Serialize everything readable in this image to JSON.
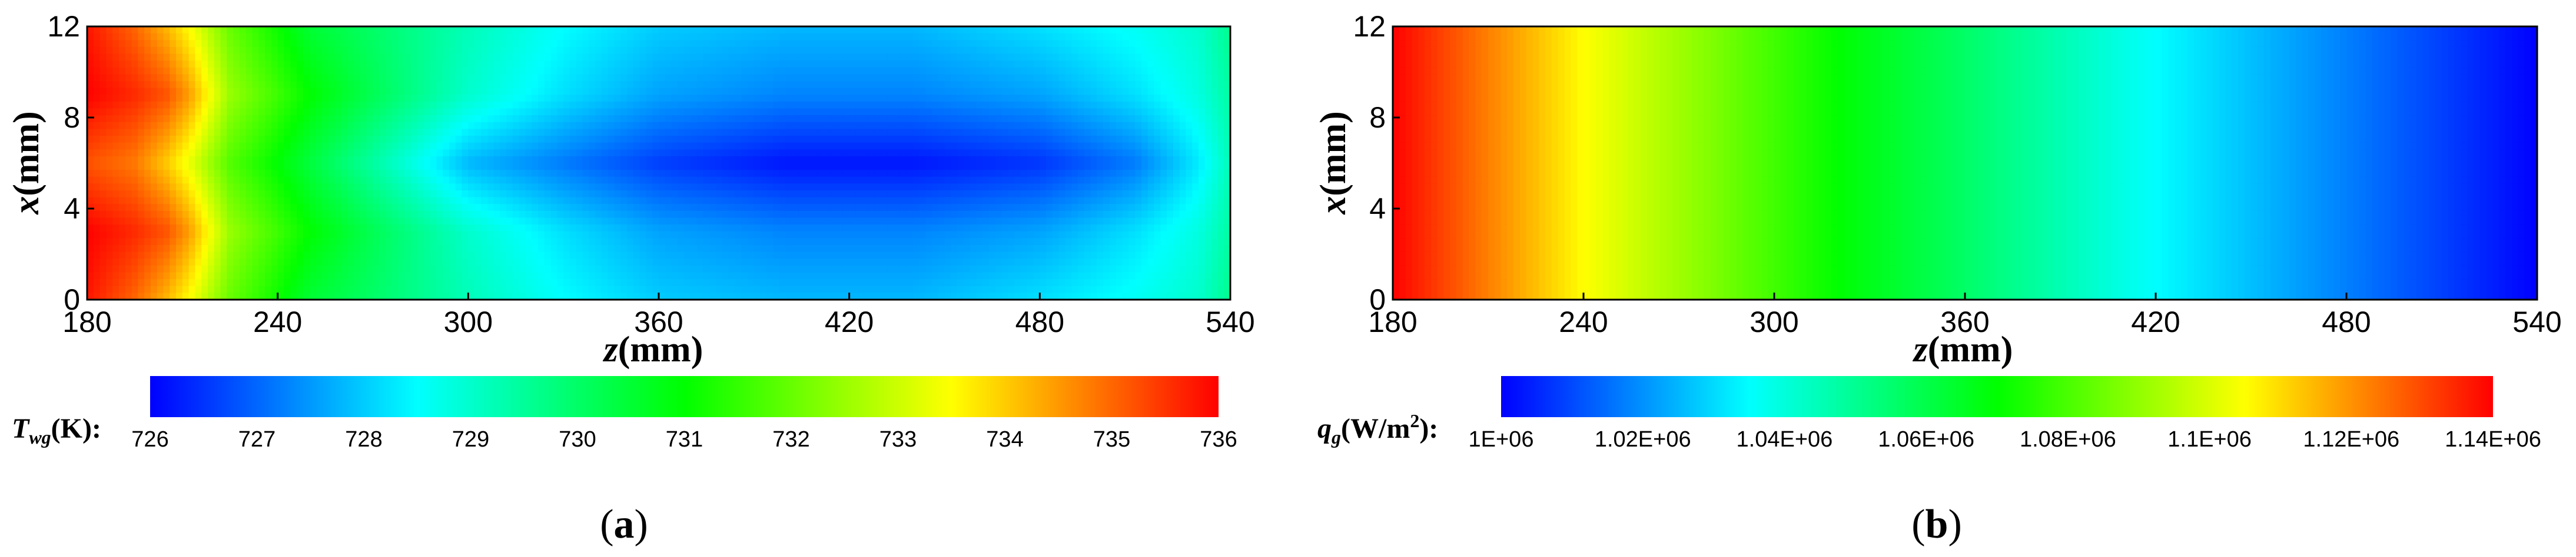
{
  "colormap": [
    "#0000ff",
    "#00ffff",
    "#00ff00",
    "#ffff00",
    "#ff0000"
  ],
  "chart_data": [
    {
      "type": "heatmap",
      "panel_label": "(a)",
      "xlabel": "z(mm)",
      "ylabel": "x(mm)",
      "xlim": [
        180,
        540
      ],
      "ylim": [
        0,
        12
      ],
      "xticks": [
        "180",
        "240",
        "300",
        "360",
        "420",
        "480",
        "540"
      ],
      "yticks": [
        "0",
        "4",
        "8",
        "12"
      ],
      "colorbar_label": "Twg(K):",
      "colorbar_label_var": "T",
      "colorbar_label_sub": "wg",
      "colorbar_label_unit": "(K):",
      "colorbar_range": [
        726,
        736
      ],
      "colorbar_ticks": [
        "726",
        "727",
        "728",
        "729",
        "730",
        "731",
        "732",
        "733",
        "734",
        "735",
        "736"
      ],
      "field": {
        "z": [
          180,
          195,
          205,
          212,
          225,
          250,
          270,
          300,
          330,
          360,
          400,
          440,
          480,
          510,
          530,
          540
        ],
        "x": [
          0,
          3,
          6,
          9,
          12
        ],
        "values": [
          [
            735.8,
            735.0,
            734.2,
            733.5,
            732.0,
            730.5,
            730.0,
            729.2,
            728.5,
            728.0,
            727.8,
            727.8,
            728.2,
            728.6,
            729.0,
            729.6
          ],
          [
            736.0,
            735.6,
            735.2,
            734.5,
            732.5,
            731.0,
            730.2,
            729.0,
            728.2,
            727.6,
            727.3,
            727.3,
            727.6,
            728.2,
            728.8,
            729.4
          ],
          [
            735.2,
            734.8,
            734.0,
            733.3,
            731.8,
            730.4,
            729.4,
            727.8,
            727.2,
            726.6,
            726.2,
            726.2,
            726.5,
            727.2,
            728.3,
            729.2
          ],
          [
            736.0,
            735.6,
            735.2,
            734.5,
            732.5,
            731.0,
            730.2,
            729.0,
            728.2,
            727.6,
            727.3,
            727.3,
            727.6,
            728.2,
            728.8,
            729.4
          ],
          [
            735.8,
            735.0,
            734.2,
            733.5,
            732.0,
            730.5,
            730.0,
            729.2,
            728.5,
            728.0,
            727.8,
            727.8,
            728.2,
            728.6,
            729.0,
            729.6
          ]
        ]
      }
    },
    {
      "type": "heatmap",
      "panel_label": "(b)",
      "xlabel": "z(mm)",
      "ylabel": "x(mm)",
      "xlim": [
        180,
        540
      ],
      "ylim": [
        0,
        12
      ],
      "xticks": [
        "180",
        "240",
        "300",
        "360",
        "420",
        "480",
        "540"
      ],
      "yticks": [
        "0",
        "4",
        "8",
        "12"
      ],
      "colorbar_label": "qg(W/m2):",
      "colorbar_label_var": "q",
      "colorbar_label_sub": "g",
      "colorbar_label_unit": "(W/m",
      "colorbar_label_sup": "2",
      "colorbar_label_end": "):",
      "colorbar_range": [
        1000000,
        1140000
      ],
      "colorbar_ticks": [
        "1E+06",
        "1.02E+06",
        "1.04E+06",
        "1.06E+06",
        "1.08E+06",
        "1.1E+06",
        "1.12E+06",
        "1.14E+06"
      ],
      "field": {
        "z": [
          180,
          240,
          320,
          420,
          540
        ],
        "x": [
          0,
          12
        ],
        "values": [
          [
            1140000,
            1105000,
            1070000,
            1035000,
            1000000
          ],
          [
            1140000,
            1105000,
            1070000,
            1035000,
            1000000
          ]
        ]
      }
    }
  ]
}
